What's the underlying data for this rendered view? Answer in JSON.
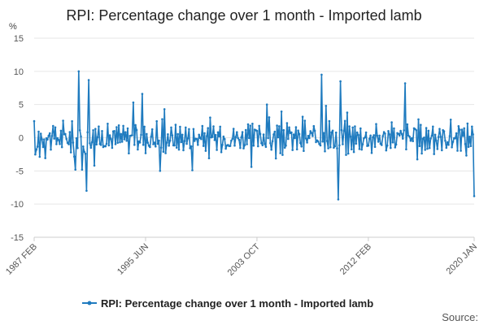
{
  "chart_data": {
    "type": "line",
    "title": "RPI: Percentage change over 1 month - Imported lamb",
    "ylabel": "%",
    "xlabel": "",
    "ylim": [
      -15,
      15
    ],
    "y_ticks": [
      15,
      10,
      5,
      0,
      -5,
      -10,
      -15
    ],
    "x_range": [
      1987.083,
      2020.0
    ],
    "x_ticks": [
      {
        "label": "1987 FEB",
        "x": 1987.083
      },
      {
        "label": "1995 JUN",
        "x": 1995.417
      },
      {
        "label": "2003 OCT",
        "x": 2003.75
      },
      {
        "label": "2012 FEB",
        "x": 2012.083
      },
      {
        "label": "2020 JAN",
        "x": 2020.0
      }
    ],
    "series": [
      {
        "name": "RPI: Percentage change over 1 month - Imported lamb",
        "color": "#1f7bbf",
        "monthly_seed": 17,
        "key_points": [
          {
            "x": 1987.083,
            "y": 2.5
          },
          {
            "x": 1987.25,
            "y": -1.8
          },
          {
            "x": 1990.17,
            "y": -4.8
          },
          {
            "x": 1990.42,
            "y": 10.0
          },
          {
            "x": 1990.67,
            "y": -4.8
          },
          {
            "x": 1991.0,
            "y": -8.0
          },
          {
            "x": 1991.17,
            "y": 8.7
          },
          {
            "x": 1991.6,
            "y": -4.2
          },
          {
            "x": 1994.5,
            "y": 5.3
          },
          {
            "x": 1995.17,
            "y": 6.6
          },
          {
            "x": 1996.5,
            "y": -5.0
          },
          {
            "x": 1996.8,
            "y": 4.3
          },
          {
            "x": 1998.9,
            "y": -4.9
          },
          {
            "x": 2003.3,
            "y": -4.4
          },
          {
            "x": 2004.5,
            "y": 5.0
          },
          {
            "x": 2008.6,
            "y": 9.5
          },
          {
            "x": 2008.9,
            "y": 4.8
          },
          {
            "x": 2009.8,
            "y": -9.3
          },
          {
            "x": 2010.0,
            "y": 8.5
          },
          {
            "x": 2014.8,
            "y": 8.2
          },
          {
            "x": 2019.92,
            "y": 0.5
          },
          {
            "x": 2020.0,
            "y": -8.8
          }
        ]
      }
    ],
    "legend": "bottom",
    "grid": true
  },
  "legend_label": "RPI: Percentage change over 1 month - Imported lamb",
  "source_label": "Source:"
}
